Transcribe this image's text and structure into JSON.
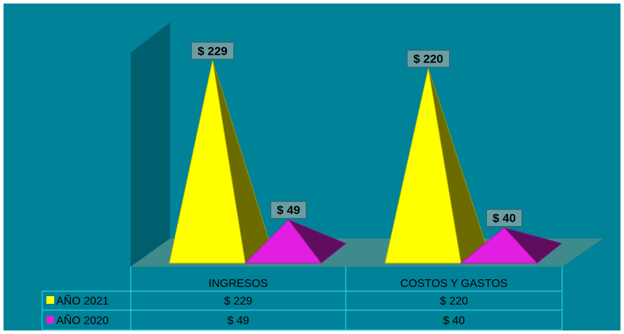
{
  "chart_data": {
    "type": "bar",
    "title": "",
    "xlabel": "",
    "ylabel": "",
    "categories": [
      "INGRESOS",
      "COSTOS Y GASTOS"
    ],
    "series": [
      {
        "name": "AÑO 2021",
        "values": [
          229,
          220
        ],
        "color": "#ffff00",
        "value_labels": [
          "$ 229",
          "$ 220"
        ]
      },
      {
        "name": "AÑO 2020",
        "values": [
          49,
          40
        ],
        "color": "#e21ee2",
        "value_labels": [
          "$ 49",
          "$ 40"
        ]
      }
    ],
    "ylim": [
      0,
      230
    ],
    "grid": false,
    "legend": "data-table-left",
    "background_color": "#008299",
    "floor_color": "#3f8b8c",
    "wall_color": "#005f6f"
  }
}
